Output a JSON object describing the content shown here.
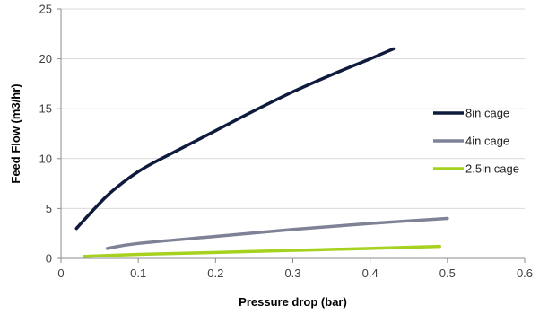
{
  "chart_data": {
    "type": "line",
    "title": "",
    "xlabel": "Pressure drop (bar)",
    "ylabel": "Feed Flow (m3/hr)",
    "xlim": [
      0,
      0.6
    ],
    "ylim": [
      0,
      25
    ],
    "xticks": [
      0,
      0.1,
      0.2,
      0.3,
      0.4,
      0.5,
      0.6
    ],
    "xtick_labels": [
      "0",
      "0.1",
      "0.2",
      "0.3",
      "0.4",
      "0.5",
      "0.6"
    ],
    "yticks": [
      0,
      5,
      10,
      15,
      20,
      25
    ],
    "ytick_labels": [
      "0",
      "5",
      "10",
      "15",
      "20",
      "25"
    ],
    "grid": "horizontal",
    "legend_position": "right",
    "series": [
      {
        "name": "8in cage",
        "color": "#0f1b3d",
        "x": [
          0.02,
          0.04,
          0.06,
          0.08,
          0.1,
          0.12,
          0.15,
          0.2,
          0.25,
          0.3,
          0.35,
          0.4,
          0.43
        ],
        "y": [
          3.0,
          4.7,
          6.3,
          7.6,
          8.7,
          9.6,
          10.8,
          12.8,
          14.8,
          16.7,
          18.4,
          20.0,
          21.0
        ]
      },
      {
        "name": "4in cage",
        "color": "#7f8296",
        "x": [
          0.06,
          0.1,
          0.2,
          0.3,
          0.4,
          0.5
        ],
        "y": [
          1.0,
          1.5,
          2.2,
          2.9,
          3.5,
          4.0
        ]
      },
      {
        "name": "2.5in cage",
        "color": "#a6d21f",
        "x": [
          0.03,
          0.1,
          0.2,
          0.3,
          0.4,
          0.49
        ],
        "y": [
          0.2,
          0.4,
          0.6,
          0.8,
          1.0,
          1.2
        ]
      }
    ]
  }
}
